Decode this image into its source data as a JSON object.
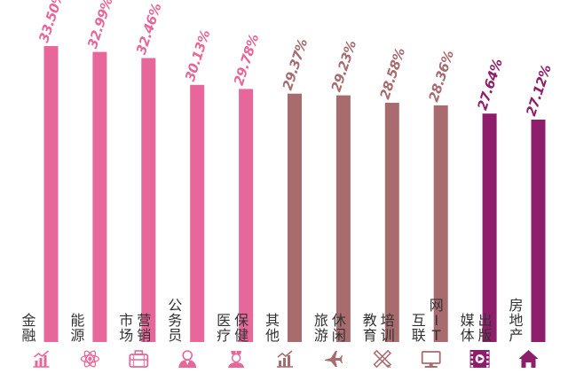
{
  "chart_data": {
    "type": "bar",
    "categories": [
      "金融",
      "能源",
      "市场营销",
      "公务员",
      "医疗保健",
      "其他",
      "旅游休闲",
      "教育培训",
      "互联网IT",
      "媒体出版",
      "房地产"
    ],
    "category_label_columns": [
      [
        "金融"
      ],
      [
        "能源"
      ],
      [
        "市场",
        "营销"
      ],
      [
        "公务员"
      ],
      [
        "医疗",
        "保健"
      ],
      [
        "其他"
      ],
      [
        "旅游",
        "休闲"
      ],
      [
        "教育",
        "培训"
      ],
      [
        "互联",
        "网IT"
      ],
      [
        "媒体",
        "出版"
      ],
      [
        "房地产"
      ]
    ],
    "values": [
      33.5,
      32.99,
      32.46,
      30.13,
      29.78,
      29.37,
      29.23,
      28.58,
      28.36,
      27.64,
      27.12
    ],
    "value_labels": [
      "33.50%",
      "32.99%",
      "32.46%",
      "30.13%",
      "29.78%",
      "29.37%",
      "29.23%",
      "28.58%",
      "28.36%",
      "27.64%",
      "27.12%"
    ],
    "groups": [
      0,
      0,
      0,
      0,
      0,
      1,
      1,
      1,
      1,
      2,
      2
    ],
    "group_colors": [
      "#e8679a",
      "#a86b6e",
      "#8e1e6b"
    ],
    "icons": [
      "chart-icon",
      "atom-icon",
      "briefcase-icon",
      "person-icon",
      "nurse-icon",
      "chart-icon",
      "airplane-icon",
      "pencil-ruler-icon",
      "computer-icon",
      "film-icon",
      "house-icon"
    ],
    "title": "",
    "xlabel": "",
    "ylabel": "",
    "ylim": [
      0,
      34
    ],
    "grid": false,
    "legend": "none"
  }
}
